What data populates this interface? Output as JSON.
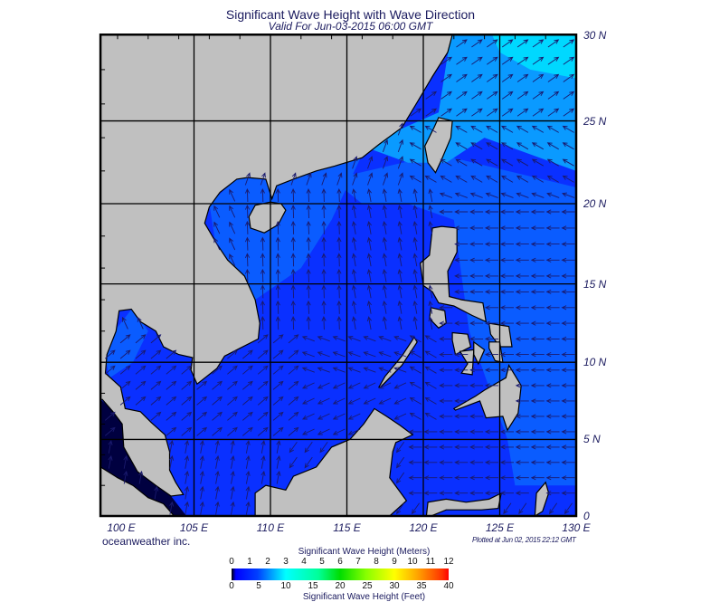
{
  "header": {
    "title": "Significant Wave Height with Wave Direction",
    "subtitle": "Valid For Jun-03-2015 06:00 GMT"
  },
  "map": {
    "lon_labels": [
      "100 E",
      "105 E",
      "110 E",
      "115 E",
      "120 E",
      "125 E",
      "130 E"
    ],
    "lat_labels": [
      "30 N",
      "25 N",
      "20 N",
      "15 N",
      "10 N",
      "5 N",
      "0"
    ],
    "colors": {
      "land": "#c0c0c0",
      "coast": "#000000",
      "arrow": "#1a1a6e",
      "sea_low": "#0a30ff",
      "sea_mid": "#0a5cff",
      "sea_high": "#0a9aff",
      "sea_top": "#00d8ff",
      "calm": "#000040"
    }
  },
  "footer": {
    "credit": "oceanweather inc.",
    "plotted": "Plotted at Jun 02, 2015 22:12 GMT"
  },
  "colorbar": {
    "title_meters": "Significant Wave Height (Meters)",
    "title_feet": "Significant Wave Height (Feet)",
    "meters_ticks": [
      "0",
      "1",
      "2",
      "3",
      "4",
      "5",
      "6",
      "7",
      "8",
      "9",
      "10",
      "11",
      "12"
    ],
    "feet_ticks": [
      "0",
      "5",
      "10",
      "15",
      "20",
      "25",
      "30",
      "35",
      "40"
    ]
  }
}
